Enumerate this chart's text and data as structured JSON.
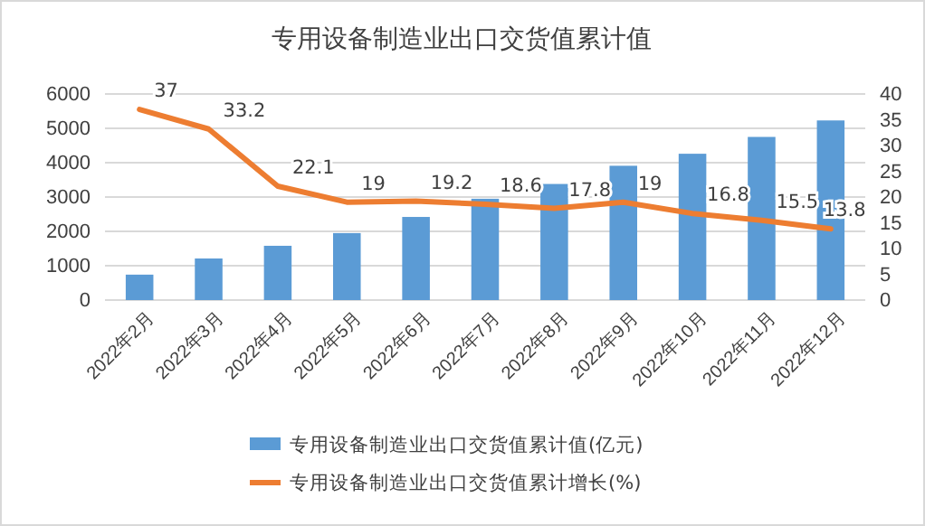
{
  "chart_data": {
    "type": "bar",
    "title": "专用设备制造业出口交货值累计值",
    "categories": [
      "2022年2月",
      "2022年3月",
      "2022年4月",
      "2022年5月",
      "2022年6月",
      "2022年7月",
      "2022年8月",
      "2022年9月",
      "2022年10月",
      "2022年11月",
      "2022年12月"
    ],
    "series": [
      {
        "name": "专用设备制造业出口交货值累计值(亿元)",
        "color": "#5b9bd5",
        "values": [
          740,
          1210,
          1580,
          1950,
          2420,
          2950,
          3380,
          3910,
          4260,
          4750,
          5230
        ]
      },
      {
        "name": "专用设备制造业出口交货值累计增长(%)",
        "color": "#ed7d31",
        "type": "line",
        "axis": "y2",
        "data_labels": true,
        "values": [
          37,
          33.2,
          22.1,
          19,
          19.2,
          18.6,
          17.8,
          19,
          16.8,
          15.5,
          13.8
        ]
      }
    ],
    "ylim": [
      0,
      6000
    ],
    "yticks": [
      0,
      1000,
      2000,
      3000,
      4000,
      5000,
      6000
    ],
    "y2lim": [
      0,
      40
    ],
    "y2ticks": [
      0,
      5,
      10,
      15,
      20,
      25,
      30,
      35,
      40
    ],
    "grid": "y",
    "legend": "bottom"
  }
}
